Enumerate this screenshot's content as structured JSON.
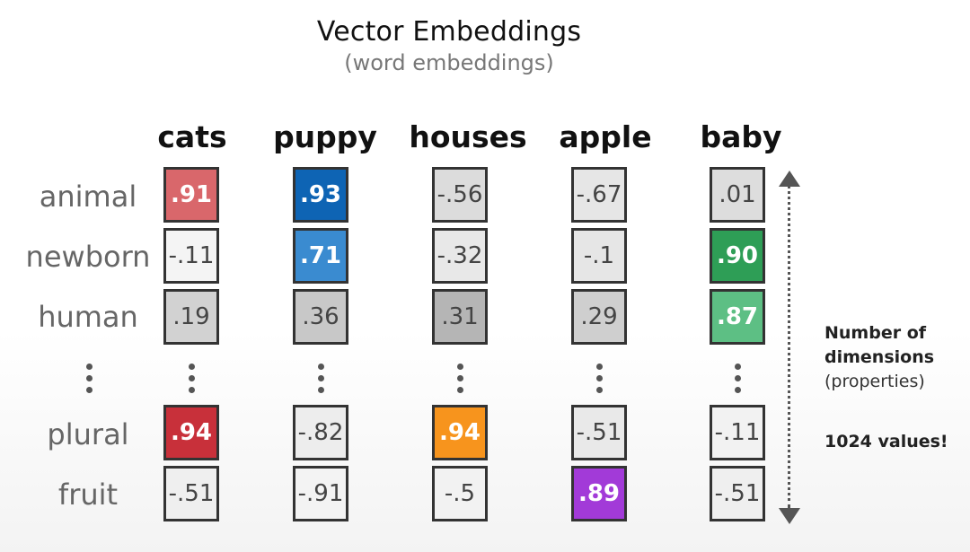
{
  "title": "Vector Embeddings",
  "subtitle": "(word embeddings)",
  "columns": [
    "cats",
    "puppy",
    "houses",
    "apple",
    "baby"
  ],
  "rows": [
    "animal",
    "newborn",
    "human",
    "plural",
    "fruit"
  ],
  "values": {
    "animal": [
      ".91",
      ".93",
      "-.56",
      "-.67",
      ".01"
    ],
    "newborn": [
      "-.11",
      ".71",
      "-.32",
      "-.1",
      ".90"
    ],
    "human": [
      ".19",
      ".36",
      ".31",
      ".29",
      ".87"
    ],
    "plural": [
      ".94",
      "-.82",
      ".94",
      "-.51",
      "-.11"
    ],
    "fruit": [
      "-.51",
      "-.91",
      "-.5",
      ".89",
      "-.51"
    ]
  },
  "colors": {
    "cats_animal": "#d9676b",
    "cats_plural": "#c8303a",
    "puppy_animal": "#0e64b4",
    "puppy_newborn": "#3a8bd0",
    "houses_plural": "#f7941d",
    "apple_fruit": "#a23ad8",
    "baby_newborn": "#2e9e56",
    "baby_human": "#5dbf84",
    "light_gray": "#f2f2f2",
    "mid_gray": "#dcdcdc",
    "dark_gray": "#b9b9b9"
  },
  "side_note": {
    "line1": "Number of",
    "line2": "dimensions",
    "line3": "(properties)",
    "line4": "1024 values!"
  }
}
